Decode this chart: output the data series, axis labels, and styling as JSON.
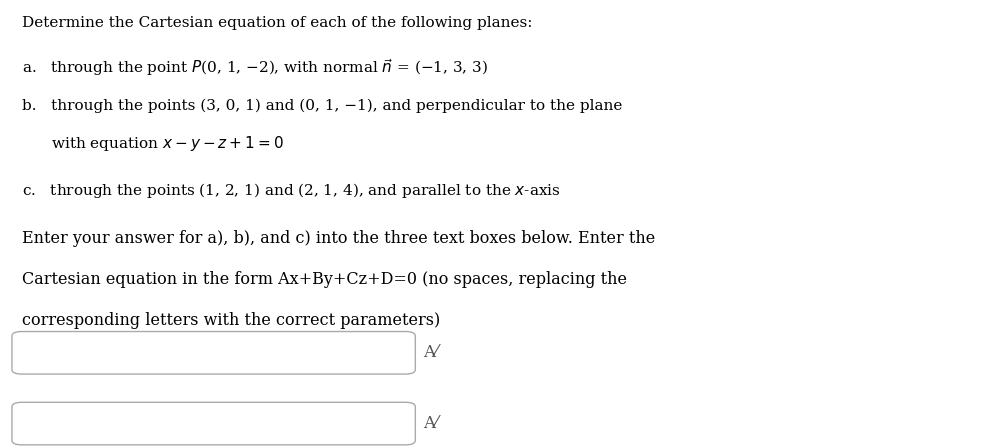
{
  "title_line": "Determine the Cartesian equation of each of the following planes:",
  "line_a": "a.   through the point $P$(0, 1, −2), with normal $\\vec{n}$ = (−1, 3, 3)",
  "line_b1": "b.   through the points (3, 0, 1) and (0, 1, −1), and perpendicular to the plane",
  "line_b2": "      with equation $x - y - z + 1 = 0$",
  "line_c": "c.   through the points (1, 2, 1) and (2, 1, 4), and parallel to the $x$-axis",
  "instruction1": "Enter your answer for a), b), and c) into the three text boxes below. Enter the",
  "instruction2": "Cartesian equation in the form Ax+By+Cz+D=0 (no spaces, replacing the",
  "instruction3": "corresponding letters with the correct parameters)",
  "submit_symbol": "A⁄",
  "background_color": "#ffffff",
  "text_color": "#000000",
  "box_edge_color": "#aaaaaa",
  "box_fill_color": "#ffffff",
  "title_fontsize": 11.0,
  "body_fontsize": 11.0,
  "instr_fontsize": 11.5,
  "submit_fontsize": 12.0,
  "fig_width": 9.96,
  "fig_height": 4.48,
  "dpi": 100
}
